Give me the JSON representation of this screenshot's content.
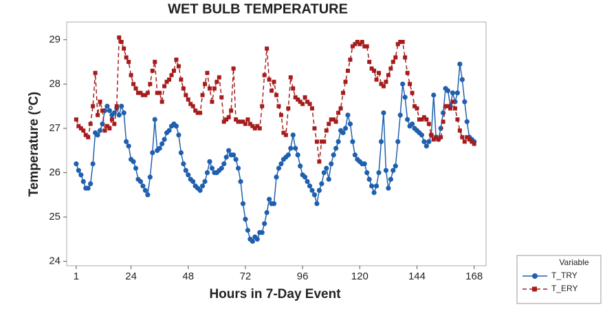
{
  "chart_data": {
    "type": "line",
    "title": "WET BULB TEMPERATURE",
    "x_label": "Hours in 7-Day Event",
    "y_label": "Temperature (°C)",
    "legend_title": "Variable",
    "legend_position": "bottom-right-outside",
    "x": [
      1,
      2,
      3,
      4,
      5,
      6,
      7,
      8,
      9,
      10,
      11,
      12,
      13,
      14,
      15,
      16,
      17,
      18,
      19,
      20,
      21,
      22,
      23,
      24,
      25,
      26,
      27,
      28,
      29,
      30,
      31,
      32,
      33,
      34,
      35,
      36,
      37,
      38,
      39,
      40,
      41,
      42,
      43,
      44,
      45,
      46,
      47,
      48,
      49,
      50,
      51,
      52,
      53,
      54,
      55,
      56,
      57,
      58,
      59,
      60,
      61,
      62,
      63,
      64,
      65,
      66,
      67,
      68,
      69,
      70,
      71,
      72,
      73,
      74,
      75,
      76,
      77,
      78,
      79,
      80,
      81,
      82,
      83,
      84,
      85,
      86,
      87,
      88,
      89,
      90,
      91,
      92,
      93,
      94,
      95,
      96,
      97,
      98,
      99,
      100,
      101,
      102,
      103,
      104,
      105,
      106,
      107,
      108,
      109,
      110,
      111,
      112,
      113,
      114,
      115,
      116,
      117,
      118,
      119,
      120,
      121,
      122,
      123,
      124,
      125,
      126,
      127,
      128,
      129,
      130,
      131,
      132,
      133,
      134,
      135,
      136,
      137,
      138,
      139,
      140,
      141,
      142,
      143,
      144,
      145,
      146,
      147,
      148,
      149,
      150,
      151,
      152,
      153,
      154,
      155,
      156,
      157,
      158,
      159,
      160,
      161,
      162,
      163,
      164,
      165,
      166,
      167,
      168
    ],
    "series": [
      {
        "name": "T_TRY",
        "color": "#1f5fae",
        "marker": "circle",
        "line_style": "solid",
        "values": [
          26.2,
          26.05,
          25.95,
          25.8,
          25.65,
          25.65,
          25.75,
          26.2,
          26.9,
          26.85,
          26.95,
          27.1,
          27.4,
          27.5,
          27.4,
          27.3,
          27.35,
          27.45,
          27.3,
          27.5,
          27.35,
          26.7,
          26.6,
          26.3,
          26.25,
          26.1,
          25.85,
          25.8,
          25.7,
          25.6,
          25.5,
          25.9,
          26.45,
          27.2,
          26.5,
          26.55,
          26.65,
          26.75,
          26.9,
          26.95,
          27.05,
          27.1,
          27.05,
          26.85,
          26.45,
          26.2,
          26.05,
          25.95,
          25.85,
          25.8,
          25.7,
          25.65,
          25.6,
          25.7,
          25.8,
          26.0,
          26.25,
          26.1,
          26.0,
          26.0,
          26.05,
          26.1,
          26.2,
          26.35,
          26.5,
          26.4,
          26.4,
          26.3,
          26.1,
          25.8,
          25.3,
          24.95,
          24.7,
          24.5,
          24.45,
          24.55,
          24.5,
          24.65,
          24.65,
          24.85,
          25.1,
          25.4,
          25.3,
          25.3,
          25.9,
          26.1,
          26.2,
          26.3,
          26.35,
          26.4,
          26.55,
          26.85,
          26.55,
          26.4,
          26.15,
          25.95,
          25.9,
          25.8,
          25.7,
          25.6,
          25.5,
          25.3,
          25.6,
          25.75,
          26.0,
          26.1,
          25.85,
          26.2,
          26.4,
          26.55,
          26.7,
          26.95,
          26.9,
          27.0,
          27.3,
          27.1,
          26.7,
          26.4,
          26.3,
          26.25,
          26.2,
          26.2,
          26.0,
          25.85,
          25.7,
          25.55,
          25.7,
          26.0,
          26.7,
          27.35,
          26.05,
          25.65,
          25.85,
          26.05,
          26.15,
          26.7,
          27.3,
          28.0,
          27.7,
          27.2,
          27.05,
          27.1,
          27.0,
          26.95,
          26.9,
          26.85,
          26.7,
          26.6,
          26.7,
          26.85,
          27.75,
          26.8,
          26.75,
          27.0,
          27.35,
          27.9,
          27.85,
          27.5,
          27.8,
          27.6,
          27.8,
          28.45,
          28.1,
          27.6,
          27.15,
          26.8,
          26.75,
          26.7
        ]
      },
      {
        "name": "T_ERY",
        "color": "#a61c1c",
        "marker": "square",
        "line_style": "dashed",
        "values": [
          27.2,
          27.05,
          27.0,
          26.95,
          26.85,
          26.8,
          27.1,
          27.5,
          28.25,
          27.3,
          27.6,
          27.4,
          26.95,
          27.05,
          27.0,
          27.2,
          27.1,
          27.5,
          29.05,
          28.95,
          28.8,
          28.6,
          28.5,
          28.2,
          28.0,
          27.9,
          27.8,
          27.8,
          27.75,
          27.75,
          27.8,
          28.0,
          28.3,
          28.5,
          27.8,
          27.8,
          27.6,
          27.95,
          28.05,
          28.1,
          28.2,
          28.3,
          28.55,
          28.4,
          28.1,
          27.9,
          27.75,
          27.65,
          27.55,
          27.5,
          27.4,
          27.35,
          27.35,
          27.75,
          28.0,
          28.25,
          27.9,
          27.6,
          27.9,
          28.05,
          28.15,
          27.7,
          27.15,
          27.2,
          27.25,
          27.4,
          28.35,
          27.2,
          27.15,
          27.15,
          27.15,
          27.1,
          27.2,
          27.1,
          27.05,
          27.0,
          27.05,
          27.0,
          27.5,
          28.2,
          28.8,
          28.1,
          27.85,
          28.05,
          27.75,
          27.5,
          27.3,
          26.9,
          26.85,
          27.45,
          28.15,
          27.9,
          27.7,
          27.65,
          27.6,
          27.55,
          27.7,
          27.6,
          27.55,
          27.45,
          27.0,
          26.7,
          26.25,
          26.7,
          26.7,
          26.95,
          27.1,
          27.2,
          27.2,
          27.15,
          27.35,
          27.45,
          27.8,
          28.05,
          28.3,
          28.55,
          28.85,
          28.9,
          28.95,
          28.9,
          28.95,
          28.85,
          28.85,
          28.5,
          28.35,
          28.3,
          28.1,
          28.25,
          28.0,
          27.95,
          28.05,
          28.2,
          28.35,
          28.5,
          28.6,
          28.9,
          28.95,
          28.95,
          28.6,
          28.25,
          28.0,
          27.8,
          27.5,
          27.45,
          27.2,
          27.2,
          27.25,
          27.2,
          27.1,
          26.85,
          26.75,
          26.8,
          26.75,
          26.8,
          27.15,
          27.5,
          27.5,
          27.45,
          27.6,
          27.45,
          27.2,
          26.95,
          26.8,
          26.7,
          26.8,
          26.75,
          26.7,
          26.65
        ]
      }
    ],
    "xlim": [
      -3,
      173
    ],
    "xticks": [
      1,
      24,
      48,
      72,
      96,
      120,
      144,
      168
    ],
    "ylim": [
      23.9,
      29.4
    ],
    "yticks": [
      24,
      25,
      26,
      27,
      28,
      29
    ],
    "grid": false
  }
}
